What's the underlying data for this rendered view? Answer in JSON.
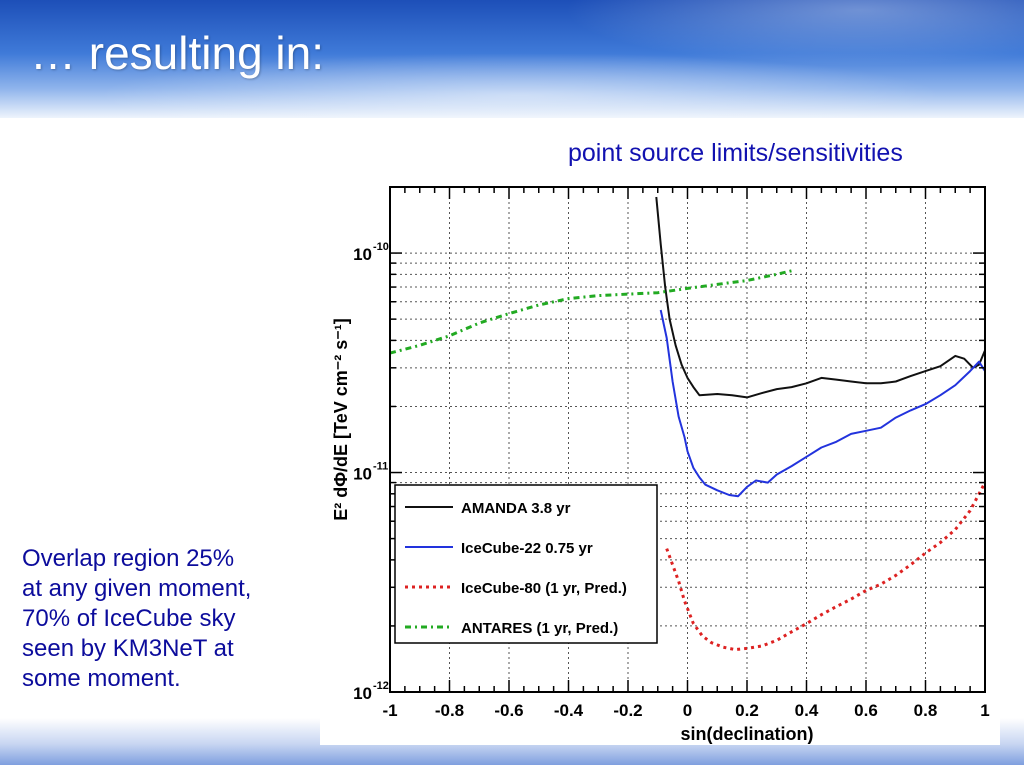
{
  "slide": {
    "title": "… resulting in:",
    "subtitle": "point source limits/sensitivities",
    "note_lines": [
      "Overlap region 25%",
      "at any given moment,",
      "70% of IceCube sky",
      "seen by KM3NeT at",
      "some moment."
    ]
  },
  "colors": {
    "header_blue": "#2f64c8",
    "text_blue": "#1212b0"
  },
  "chart_data": {
    "type": "line",
    "xlabel": "sin(declination)",
    "ylabel": "E² dΦ/dE [TeV cm⁻² s⁻¹]",
    "xlim": [
      -1,
      1
    ],
    "ylim": [
      1e-12,
      2e-10
    ],
    "log_y": true,
    "grid": true,
    "x_ticks": [
      "-1",
      "-0.8",
      "-0.6",
      "-0.4",
      "-0.2",
      "0",
      "0.2",
      "0.4",
      "0.6",
      "0.8",
      "1"
    ],
    "y_ticks": [
      {
        "value": 1e-12,
        "mantissa": "10",
        "exp": "-12"
      },
      {
        "value": 1e-11,
        "mantissa": "10",
        "exp": "-11"
      },
      {
        "value": 1e-10,
        "mantissa": "10",
        "exp": "-10"
      }
    ],
    "legend_position": "bottom-left",
    "series": [
      {
        "name": "AMANDA  3.8 yr",
        "color": "#111111",
        "style": "solid",
        "x": [
          -0.105,
          -0.09,
          -0.075,
          -0.06,
          -0.04,
          -0.02,
          0.0,
          0.02,
          0.04,
          0.1,
          0.15,
          0.2,
          0.25,
          0.3,
          0.35,
          0.4,
          0.45,
          0.5,
          0.55,
          0.6,
          0.65,
          0.7,
          0.75,
          0.8,
          0.85,
          0.9,
          0.93,
          0.96,
          0.98,
          1.0
        ],
        "y": [
          1.8e-10,
          1.1e-10,
          7e-11,
          5e-11,
          3.8e-11,
          3.1e-11,
          2.7e-11,
          2.45e-11,
          2.25e-11,
          2.28e-11,
          2.25e-11,
          2.2e-11,
          2.3e-11,
          2.4e-11,
          2.45e-11,
          2.55e-11,
          2.7e-11,
          2.65e-11,
          2.6e-11,
          2.55e-11,
          2.55e-11,
          2.6e-11,
          2.75e-11,
          2.9e-11,
          3.05e-11,
          3.4e-11,
          3.3e-11,
          3e-11,
          3.1e-11,
          3.6e-11
        ]
      },
      {
        "name": "IceCube-22   0.75 yr",
        "color": "#2233dd",
        "style": "solid",
        "x": [
          -0.09,
          -0.07,
          -0.05,
          -0.03,
          -0.01,
          0.0,
          0.02,
          0.04,
          0.06,
          0.1,
          0.14,
          0.17,
          0.2,
          0.23,
          0.27,
          0.3,
          0.35,
          0.4,
          0.45,
          0.5,
          0.55,
          0.6,
          0.65,
          0.7,
          0.75,
          0.8,
          0.85,
          0.9,
          0.95,
          0.98,
          1.0
        ],
        "y": [
          5.5e-11,
          4.1e-11,
          2.6e-11,
          1.8e-11,
          1.45e-11,
          1.25e-11,
          1.05e-11,
          9.5e-12,
          8.8e-12,
          8.3e-12,
          7.9e-12,
          7.8e-12,
          8.6e-12,
          9.2e-12,
          9e-12,
          9.8e-12,
          1.07e-11,
          1.18e-11,
          1.3e-11,
          1.38e-11,
          1.5e-11,
          1.55e-11,
          1.6e-11,
          1.78e-11,
          1.92e-11,
          2.05e-11,
          2.25e-11,
          2.5e-11,
          2.9e-11,
          3.2e-11,
          2.9e-11
        ]
      },
      {
        "name": "IceCube-80 (1 yr, Pred.)",
        "color": "#dd2222",
        "style": "dotted",
        "x": [
          -0.07,
          -0.05,
          -0.03,
          -0.01,
          0.02,
          0.05,
          0.08,
          0.12,
          0.16,
          0.2,
          0.25,
          0.3,
          0.35,
          0.4,
          0.45,
          0.5,
          0.55,
          0.6,
          0.65,
          0.7,
          0.75,
          0.8,
          0.85,
          0.9,
          0.95,
          1.0
        ],
        "y": [
          4.5e-12,
          3.8e-12,
          3.2e-12,
          2.6e-12,
          2.05e-12,
          1.8e-12,
          1.68e-12,
          1.6e-12,
          1.56e-12,
          1.58e-12,
          1.62e-12,
          1.72e-12,
          1.88e-12,
          2.05e-12,
          2.25e-12,
          2.45e-12,
          2.65e-12,
          2.9e-12,
          3.1e-12,
          3.4e-12,
          3.8e-12,
          4.3e-12,
          4.8e-12,
          5.5e-12,
          6.7e-12,
          9e-12
        ]
      },
      {
        "name": "ANTARES (1 yr, Pred.)",
        "color": "#22aa22",
        "style": "dashdot",
        "x": [
          -1.0,
          -0.9,
          -0.8,
          -0.7,
          -0.6,
          -0.5,
          -0.4,
          -0.3,
          -0.2,
          -0.1,
          0.0,
          0.1,
          0.2,
          0.3,
          0.35
        ],
        "y": [
          3.5e-11,
          3.8e-11,
          4.2e-11,
          4.8e-11,
          5.3e-11,
          5.8e-11,
          6.2e-11,
          6.4e-11,
          6.5e-11,
          6.6e-11,
          6.9e-11,
          7.2e-11,
          7.5e-11,
          8e-11,
          8.3e-11
        ]
      }
    ]
  }
}
